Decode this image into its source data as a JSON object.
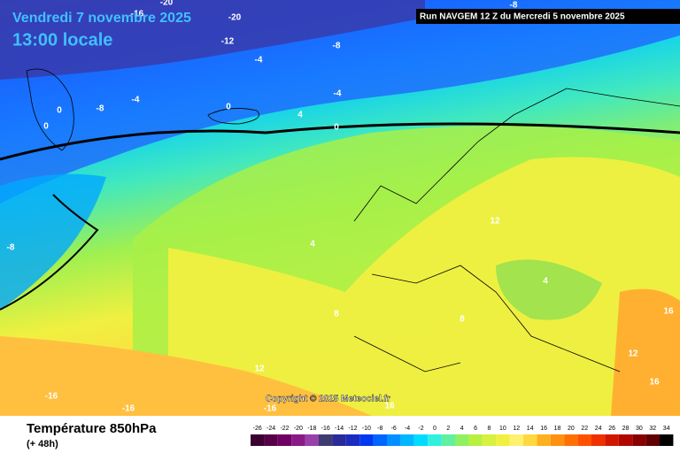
{
  "header": {
    "date": "Vendredi 7 novembre 2025",
    "time": "13:00 locale",
    "run": "Run NAVGEM 12 Z du Mercredi 5 novembre 2025"
  },
  "copyright": "Copyright © 2025 Meteociel.fr",
  "footer": {
    "title": "Température 850hPa",
    "lead": "(+ 48h)"
  },
  "legend": {
    "values": [
      -26,
      -24,
      -22,
      -20,
      -18,
      -16,
      -14,
      -12,
      -10,
      -8,
      -6,
      -4,
      -2,
      0,
      2,
      4,
      6,
      8,
      10,
      12,
      14,
      16,
      18,
      20,
      22,
      24,
      26,
      28,
      30,
      32,
      34
    ],
    "colors": [
      "#3a0030",
      "#560048",
      "#700064",
      "#8a1a88",
      "#9a40a8",
      "#3c3c70",
      "#2a2a98",
      "#1c2cc0",
      "#0038f0",
      "#0064ff",
      "#0090ff",
      "#00b8ff",
      "#00dcff",
      "#30f0e0",
      "#60f0a0",
      "#90f060",
      "#b8f040",
      "#d8f040",
      "#f0f040",
      "#fff070",
      "#ffd840",
      "#ffb020",
      "#ff9010",
      "#ff7000",
      "#ff5000",
      "#f03000",
      "#d01800",
      "#b00800",
      "#880000",
      "#600000",
      "#000000"
    ]
  },
  "contour_labels": [
    -20,
    -16,
    -20,
    -12,
    -8,
    -4,
    -8,
    -8,
    -4,
    -4,
    0,
    4,
    0,
    0,
    0,
    -8,
    4,
    12,
    8,
    8,
    4,
    12,
    12,
    16,
    16,
    -16,
    -16,
    -16,
    16
  ]
}
